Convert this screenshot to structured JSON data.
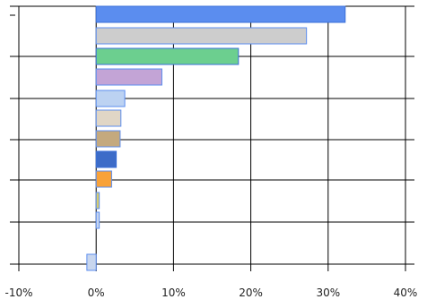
{
  "chart_data": {
    "type": "bar",
    "orientation": "horizontal",
    "title": "",
    "xlabel": "",
    "ylabel": "",
    "xlim": [
      -10,
      40
    ],
    "x_ticks": [
      -10,
      0,
      10,
      20,
      30,
      40
    ],
    "x_tick_labels": [
      "-10%",
      "0%",
      "10%",
      "20%",
      "30%",
      "40%"
    ],
    "grid": true,
    "legend": "none",
    "values": [
      32.2,
      27.2,
      18.4,
      8.5,
      3.7,
      3.2,
      3.1,
      2.6,
      2.0,
      0.4,
      0.4,
      -1.2
    ],
    "colors": [
      [
        "#5b8def",
        "#3a6fd8"
      ],
      [
        "#cdcdcd",
        "#5b8def"
      ],
      [
        "#6ccf8f",
        "#3a6fd8"
      ],
      [
        "#c3a4d6",
        "#5b8def"
      ],
      [
        "#bcd2f2",
        "#5b8def"
      ],
      [
        "#e0d6c6",
        "#5b8def"
      ],
      [
        "#c4a97e",
        "#5b8def"
      ],
      [
        "#3d6cc8",
        "#3a6fd8"
      ],
      [
        "#f8a23a",
        "#5b8def"
      ],
      [
        "#d6cc70",
        "#5b8def"
      ],
      [
        "#c8d6ee",
        "#5b8def"
      ],
      [
        "#c8d6ee",
        "#5b8def"
      ]
    ]
  }
}
